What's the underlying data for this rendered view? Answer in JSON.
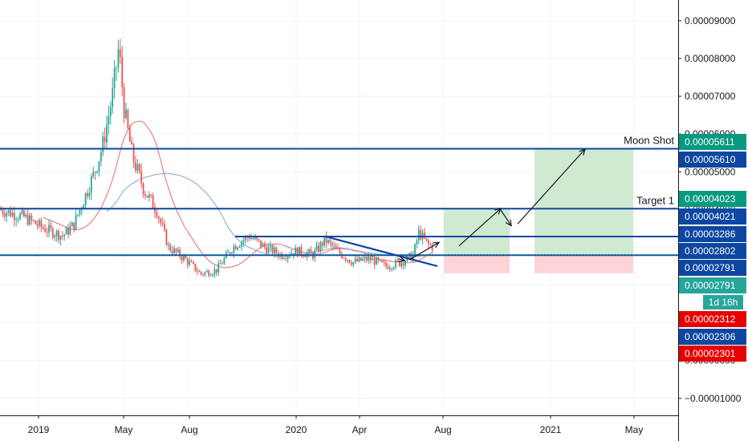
{
  "chart_data": {
    "type": "candlestick",
    "x_axis": {
      "tick_labels": [
        "2019",
        "May",
        "Aug",
        "2020",
        "Apr",
        "Aug",
        "2021",
        "May"
      ]
    },
    "y_axis": {
      "scale": "linear",
      "ylim": [
        -1.45e-05,
        9.55e-05
      ],
      "tick_values": [
        9e-05,
        8e-05,
        7e-05,
        6e-05,
        5e-05,
        4e-05,
        3e-05,
        2e-05,
        1e-05,
        0.0,
        -1e-05
      ],
      "tick_labels": [
        "0.00009000",
        "0.00008000",
        "0.00007000",
        "0.00006000",
        "0.00005000",
        "0.00004000",
        "0.00003000",
        "0.00002000",
        "0.00001000",
        "0.00000000",
        "−0.00001000"
      ]
    },
    "horizontal_levels": [
      {
        "value": 5.611e-05,
        "label": "Moon Shot"
      },
      {
        "value": 4.023e-05,
        "label": "Target 1"
      },
      {
        "value": 3.286e-05,
        "label": ""
      },
      {
        "value": 2.791e-05,
        "label": ""
      }
    ],
    "price_tags": [
      {
        "value": 5.611e-05,
        "text": "0.00005611",
        "color": "#089981"
      },
      {
        "value": 5.61e-05,
        "text": "0.00005610",
        "color": "#0d47a1"
      },
      {
        "value": 4.023e-05,
        "text": "0.00004023",
        "color": "#089981"
      },
      {
        "value": 4.021e-05,
        "text": "0.00004021",
        "color": "#0d47a1"
      },
      {
        "value": 3.286e-05,
        "text": "0.00003286",
        "color": "#0d47a1"
      },
      {
        "value": 2.802e-05,
        "text": "0.00002802",
        "color": "#0d47a1"
      },
      {
        "value": 2.791e-05,
        "text": "0.00002791",
        "color": "#0d47a1"
      },
      {
        "value": 2.791e-05,
        "text": "0.00002791",
        "color": "#26a69a"
      },
      {
        "value": 0.0,
        "text": "1d 16h",
        "color": "#26a69a"
      },
      {
        "value": 2.312e-05,
        "text": "0.00002312",
        "color": "#e60000"
      },
      {
        "value": 2.306e-05,
        "text": "0.00002306",
        "color": "#0d47a1"
      },
      {
        "value": 2.301e-05,
        "text": "0.00002301",
        "color": "#e60000"
      }
    ],
    "colors": {
      "up": "#26a69a",
      "down": "#ef5350",
      "level_line": "#0d47a1",
      "profit_zone": "#c8e6c9",
      "loss_zone": "#ffcdd2",
      "ma_fast": "#e57373",
      "ma_slow": "#8fa6d8"
    }
  }
}
